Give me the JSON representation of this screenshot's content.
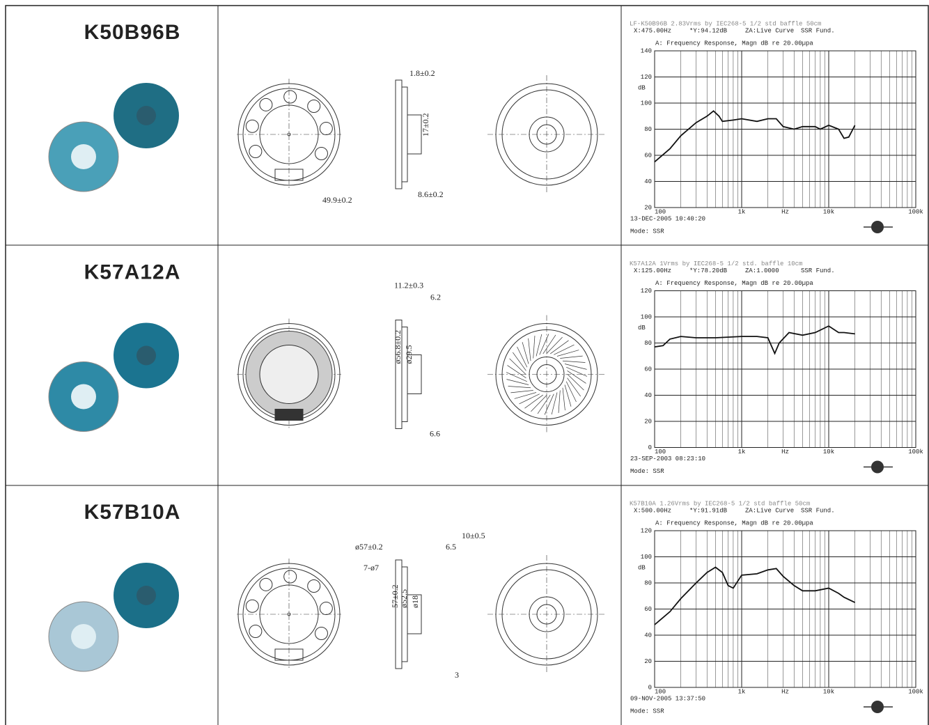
{
  "rows": [
    {
      "model": "K50B96B",
      "dimensions": [
        "1.8±0.2",
        "17±0.2",
        "49.9±0.2",
        "8.6±0.2"
      ],
      "response": {
        "note": "LF-K50B96B 2.83Vrms by IEC268-5 1/2 std baffle 50cm",
        "x_readout": "X:475.00Hz",
        "y_readout": "*Y:94.12dB",
        "za": "ZA:Live Curve",
        "fund": "SSR Fund.",
        "title": "A: Frequency Response, Magn dB re 20.00µpa",
        "y_label": "dB",
        "x_label": "Hz",
        "ylim": [
          20,
          140
        ],
        "yticks": [
          20,
          40,
          60,
          80,
          100,
          120,
          140
        ],
        "xlim": [
          100,
          100000
        ],
        "log_x": true,
        "xticks": [
          100,
          {
            "value": 1000,
            "label": "1k"
          },
          {
            "value": 10000,
            "label": "10k"
          },
          {
            "value": 100000,
            "label": "100k"
          }
        ],
        "date": "13-DEC-2005 10:40:20",
        "mode": "Mode: SSR",
        "x": [
          100,
          150,
          200,
          300,
          400,
          475,
          550,
          600,
          800,
          1000,
          1500,
          2000,
          2500,
          3000,
          4000,
          5000,
          7000,
          8000,
          10000,
          13000,
          15000,
          17000,
          20000
        ],
        "values": [
          55,
          65,
          75,
          85,
          90,
          94,
          90,
          86,
          87,
          88,
          86,
          88,
          88,
          82,
          80,
          82,
          82,
          80,
          83,
          80,
          73,
          74,
          83
        ]
      }
    },
    {
      "model": "K57A12A",
      "dimensions": [
        "11.2±0.3",
        "6.2",
        "ø56.8±0.2",
        "ø29.5",
        "6.6"
      ],
      "response": {
        "note": "K57A12A 1Vrms by IEC268-5 1/2 std. baffle 10cm",
        "x_readout": "X:125.00Hz",
        "y_readout": "*Y:78.20dB",
        "za": "ZA:1.0000",
        "fund": "SSR Fund.",
        "title": "A: Frequency Response, Magn dB re 20.00µpa",
        "y_label": "dB",
        "x_label": "Hz",
        "ylim": [
          0,
          120
        ],
        "yticks": [
          0,
          20,
          40,
          60,
          80,
          100,
          120
        ],
        "xlim": [
          100,
          100000
        ],
        "log_x": true,
        "xticks": [
          100,
          {
            "value": 1000,
            "label": "1k"
          },
          {
            "value": 10000,
            "label": "10k"
          },
          {
            "value": 100000,
            "label": "100k"
          }
        ],
        "date": "23-SEP-2003 08:23:10",
        "mode": "Mode: SSR",
        "x": [
          100,
          125,
          150,
          200,
          300,
          500,
          1000,
          1500,
          2000,
          2400,
          2700,
          3500,
          5000,
          7000,
          10000,
          13000,
          15000,
          20000
        ],
        "values": [
          77,
          78,
          83,
          85,
          84,
          84,
          85,
          85,
          84,
          72,
          80,
          88,
          86,
          88,
          93,
          88,
          88,
          87
        ]
      }
    },
    {
      "model": "K57B10A",
      "dimensions": [
        "ø57±0.2",
        "7-ø7",
        "10±0.5",
        "6.5",
        "57±0.2",
        "ø52.5",
        "ø18",
        "3"
      ],
      "response": {
        "note": "K57B10A 1.26Vrms by IEC268-5 1/2 std baffle 50cm",
        "x_readout": "X:500.00Hz",
        "y_readout": "*Y:91.91dB",
        "za": "ZA:Live Curve",
        "fund": "SSR Fund.",
        "title": "A: Frequency Response, Magn dB re 20.00µpa",
        "y_label": "dB",
        "x_label": "Hz",
        "ylim": [
          0,
          120
        ],
        "yticks": [
          0,
          20,
          40,
          60,
          80,
          100,
          120
        ],
        "xlim": [
          100,
          100000
        ],
        "log_x": true,
        "xticks": [
          100,
          {
            "value": 1000,
            "label": "1k"
          },
          {
            "value": 10000,
            "label": "10k"
          },
          {
            "value": 100000,
            "label": "100k"
          }
        ],
        "date": "09-NOV-2005 13:37:50",
        "mode": "Mode: SSR",
        "x": [
          100,
          150,
          200,
          300,
          400,
          500,
          600,
          700,
          800,
          1000,
          1500,
          2000,
          2500,
          3000,
          4000,
          5000,
          7000,
          10000,
          13000,
          15000,
          20000
        ],
        "values": [
          48,
          58,
          68,
          80,
          88,
          92,
          88,
          78,
          76,
          86,
          87,
          90,
          91,
          85,
          78,
          74,
          74,
          76,
          72,
          69,
          65
        ]
      }
    }
  ]
}
